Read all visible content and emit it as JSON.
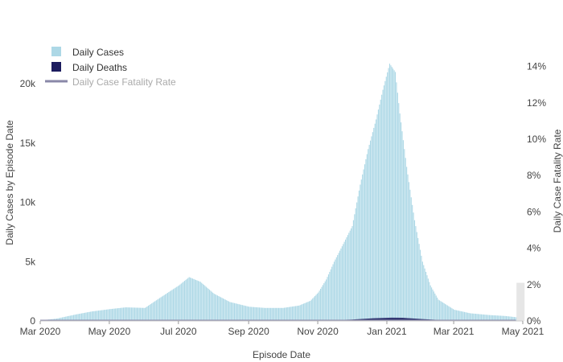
{
  "chart_data": {
    "type": "bar",
    "xlabel": "Episode Date",
    "ylabel": "Daily Cases by Episode Date",
    "y2label": "Daily Case Fatality Rate",
    "x_range": [
      "2020-03-01",
      "2021-05-01"
    ],
    "ylim": [
      0,
      23000
    ],
    "y2lim": [
      0,
      0.15
    ],
    "x_tick_labels": [
      {
        "date": "2020-03-01",
        "label": "Mar 2020"
      },
      {
        "date": "2020-05-01",
        "label": "May 2020"
      },
      {
        "date": "2020-07-01",
        "label": "Jul 2020"
      },
      {
        "date": "2020-09-01",
        "label": "Sep 2020"
      },
      {
        "date": "2020-11-01",
        "label": "Nov 2020"
      },
      {
        "date": "2021-01-01",
        "label": "Jan 2021"
      },
      {
        "date": "2021-03-01",
        "label": "Mar 2021"
      },
      {
        "date": "2021-05-01",
        "label": "May 2021"
      }
    ],
    "y_ticks": [
      {
        "value": 0,
        "label": "0"
      },
      {
        "value": 5000,
        "label": "5k"
      },
      {
        "value": 10000,
        "label": "10k"
      },
      {
        "value": 15000,
        "label": "15k"
      },
      {
        "value": 20000,
        "label": "20k"
      }
    ],
    "y2_ticks": [
      {
        "value": 0,
        "label": "0%"
      },
      {
        "value": 0.02,
        "label": "2%"
      },
      {
        "value": 0.04,
        "label": "4%"
      },
      {
        "value": 0.06,
        "label": "6%"
      },
      {
        "value": 0.08,
        "label": "8%"
      },
      {
        "value": 0.1,
        "label": "10%"
      },
      {
        "value": 0.12,
        "label": "12%"
      },
      {
        "value": 0.14,
        "label": "14%"
      }
    ],
    "legend_placement": "top-left",
    "grid": false,
    "series": [
      {
        "name": "Daily Cases",
        "type": "bar",
        "axis": "left",
        "color": "#add8e6",
        "points": [
          [
            "2020-03-01",
            50
          ],
          [
            "2020-03-15",
            200
          ],
          [
            "2020-04-01",
            550
          ],
          [
            "2020-04-15",
            800
          ],
          [
            "2020-05-01",
            1000
          ],
          [
            "2020-05-15",
            1150
          ],
          [
            "2020-06-01",
            1100
          ],
          [
            "2020-06-15",
            2000
          ],
          [
            "2020-07-01",
            3000
          ],
          [
            "2020-07-10",
            3700
          ],
          [
            "2020-07-20",
            3300
          ],
          [
            "2020-08-01",
            2300
          ],
          [
            "2020-08-15",
            1600
          ],
          [
            "2020-09-01",
            1200
          ],
          [
            "2020-09-15",
            1100
          ],
          [
            "2020-10-01",
            1100
          ],
          [
            "2020-10-15",
            1300
          ],
          [
            "2020-10-25",
            1700
          ],
          [
            "2020-11-01",
            2400
          ],
          [
            "2020-11-08",
            3500
          ],
          [
            "2020-11-15",
            5000
          ],
          [
            "2020-11-22",
            6300
          ],
          [
            "2020-12-01",
            8000
          ],
          [
            "2020-12-08",
            11500
          ],
          [
            "2020-12-15",
            14500
          ],
          [
            "2020-12-22",
            17000
          ],
          [
            "2020-12-28",
            19500
          ],
          [
            "2021-01-03",
            21700
          ],
          [
            "2021-01-08",
            21000
          ],
          [
            "2021-01-12",
            17500
          ],
          [
            "2021-01-18",
            13000
          ],
          [
            "2021-01-25",
            8500
          ],
          [
            "2021-02-01",
            5000
          ],
          [
            "2021-02-08",
            3000
          ],
          [
            "2021-02-15",
            1800
          ],
          [
            "2021-03-01",
            950
          ],
          [
            "2021-03-15",
            650
          ],
          [
            "2021-04-01",
            500
          ],
          [
            "2021-04-15",
            420
          ],
          [
            "2021-05-01",
            250
          ]
        ]
      },
      {
        "name": "Daily Deaths",
        "type": "area",
        "axis": "left",
        "color": "#1c1c5e",
        "points": [
          [
            "2020-03-01",
            0
          ],
          [
            "2020-04-01",
            15
          ],
          [
            "2020-05-01",
            20
          ],
          [
            "2020-06-01",
            10
          ],
          [
            "2020-07-01",
            15
          ],
          [
            "2020-08-01",
            20
          ],
          [
            "2020-09-01",
            10
          ],
          [
            "2020-10-01",
            10
          ],
          [
            "2020-11-01",
            30
          ],
          [
            "2020-12-01",
            120
          ],
          [
            "2020-12-20",
            230
          ],
          [
            "2021-01-05",
            280
          ],
          [
            "2021-01-15",
            270
          ],
          [
            "2021-02-01",
            160
          ],
          [
            "2021-02-15",
            90
          ],
          [
            "2021-03-01",
            50
          ],
          [
            "2021-04-01",
            15
          ],
          [
            "2021-05-01",
            5
          ]
        ]
      },
      {
        "name": "Daily Case Fatality Rate",
        "type": "line",
        "axis": "right",
        "color": "#8a88a8",
        "points": [
          [
            "2020-03-01",
            0.0002
          ],
          [
            "2020-05-01",
            0.0002
          ],
          [
            "2020-09-01",
            0.0002
          ],
          [
            "2021-01-01",
            0.0002
          ],
          [
            "2021-04-25",
            0.0002
          ]
        ]
      },
      {
        "name": "",
        "type": "bar",
        "axis": "right",
        "color": "#e6e6e6",
        "points": [
          [
            "2021-04-29",
            0.021
          ]
        ]
      }
    ]
  }
}
